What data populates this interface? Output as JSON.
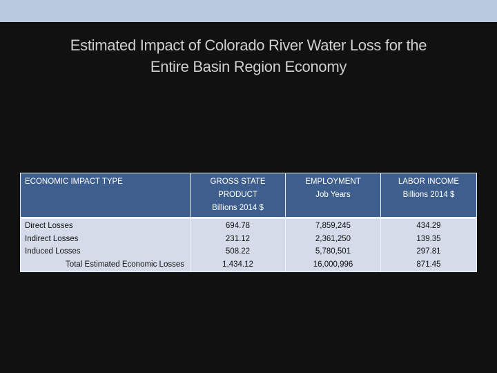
{
  "slide": {
    "title_line1": "Estimated Impact of Colorado River Water Loss for the",
    "title_line2": "Entire Basin Region Economy"
  },
  "table": {
    "headers": {
      "impact_type": "ECONOMIC IMPACT TYPE",
      "gsp": [
        "GROSS STATE",
        "PRODUCT",
        "Billions 2014 $"
      ],
      "employment": [
        "EMPLOYMENT",
        "Job Years"
      ],
      "labor_income": [
        "LABOR INCOME",
        "Billions 2014 $"
      ]
    },
    "rows": [
      {
        "type": "Direct Losses",
        "gsp": "694.78",
        "employment": "7,859,245",
        "labor_income": "434.29"
      },
      {
        "type": "Indirect Losses",
        "gsp": "231.12",
        "employment": "2,361,250",
        "labor_income": "139.35"
      },
      {
        "type": "Induced Losses",
        "gsp": "508.22",
        "employment": "5,780,501",
        "labor_income": "297.81"
      },
      {
        "type": "Total Estimated Economic Losses",
        "gsp": "1,434.12",
        "employment": "16,000,996",
        "labor_income": "871.45"
      }
    ]
  },
  "colors": {
    "header_bg": "#3e5f8e",
    "row_bg": "#d4dbe9",
    "slide_bg": "#111111",
    "top_bar": "#b8c8de"
  }
}
